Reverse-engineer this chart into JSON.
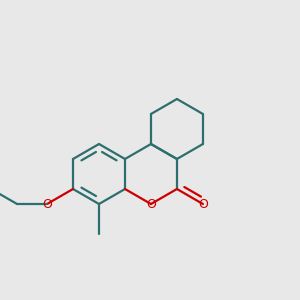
{
  "background_color": "#e8e8e8",
  "bond_color": "#2d6e6e",
  "heteroatom_color": "#cc0000",
  "bond_width": 1.6,
  "figsize": [
    3.0,
    3.0
  ],
  "dpi": 100,
  "xlim": [
    0,
    10
  ],
  "ylim": [
    0,
    10
  ]
}
